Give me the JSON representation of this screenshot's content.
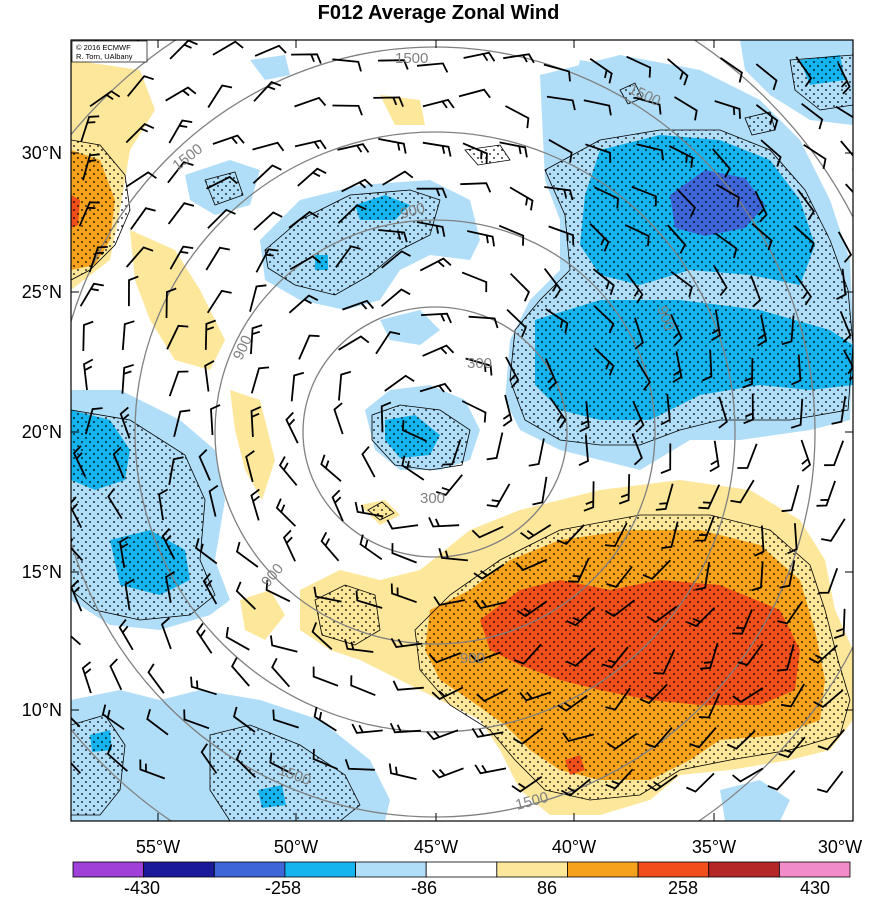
{
  "title": "F012 Average Zonal Wind",
  "credit": {
    "line1": "© 2016 ECMWF",
    "line2": "R. Torn, UAlbany"
  },
  "map": {
    "lat_ticks": [
      "30°N",
      "25°N",
      "20°N",
      "15°N",
      "10°N"
    ],
    "lon_ticks": [
      "55°W",
      "50°W",
      "45°W",
      "40°W",
      "35°W",
      "30°W"
    ],
    "contour_labels": [
      "1500",
      "1500",
      "1500",
      "1500",
      "1500",
      "900",
      "900",
      "900",
      "900",
      "900",
      "300",
      "300"
    ]
  },
  "colorbar": {
    "labels": [
      "-430",
      "-258",
      "-86",
      "86",
      "258",
      "430"
    ],
    "colors": [
      "#a040d8",
      "#1a1a9a",
      "#3f66d8",
      "#16b4ef",
      "#b0def8",
      "#ffffff",
      "#fde79a",
      "#f6a21c",
      "#f04e1a",
      "#b42828",
      "#f28cc8"
    ]
  },
  "colors": {
    "light_blue": "#b0def8",
    "mid_blue": "#16b4ef",
    "dark_blue": "#3f66d8",
    "light_yellow": "#fde79a",
    "orange": "#f6a21c",
    "red_orange": "#f04e1a",
    "contour_gray": "#808080"
  }
}
